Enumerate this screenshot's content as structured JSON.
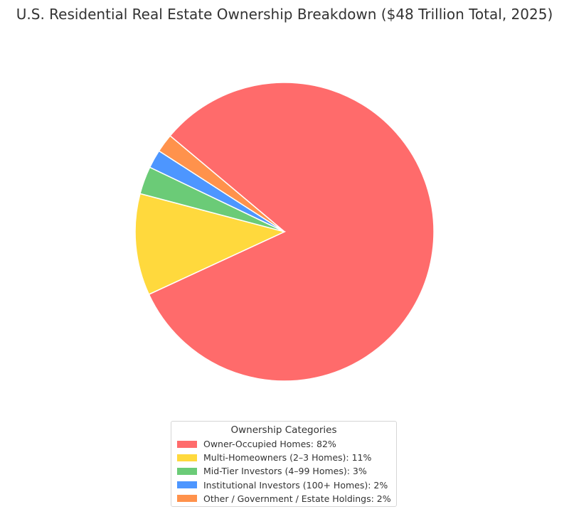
{
  "chart_data": {
    "type": "pie",
    "title": "U.S. Residential Real Estate Ownership Breakdown ($48 Trillion Total, 2025)",
    "slices": [
      {
        "label": "Owner-Occupied Homes: 82%",
        "value": 82,
        "color": "#ff6b6b"
      },
      {
        "label": "Multi-Homeowners (2–3 Homes): 11%",
        "value": 11,
        "color": "#ffd93d"
      },
      {
        "label": "Mid-Tier Investors (4–99 Homes): 3%",
        "value": 3,
        "color": "#6bcb77"
      },
      {
        "label": "Institutional Investors (100+ Homes): 2%",
        "value": 2,
        "color": "#4d96ff"
      },
      {
        "label": "Other / Government / Estate Holdings: 2%",
        "value": 2,
        "color": "#ff924c"
      }
    ],
    "legend": {
      "title": "Ownership Categories",
      "position": "bottom-center"
    }
  }
}
